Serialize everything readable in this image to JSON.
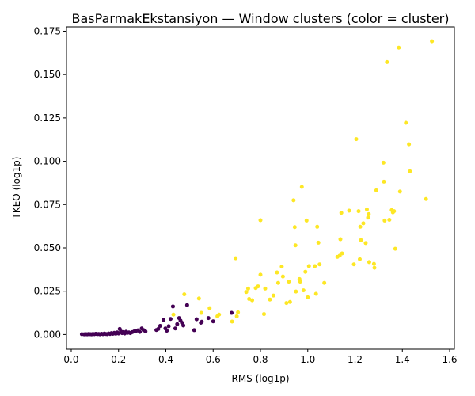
{
  "chart_data": {
    "type": "scatter",
    "title": "BasParmakEkstansiyon — Window clusters (color = cluster)",
    "xlabel": "RMS (log1p)",
    "ylabel": "TKEO (log1p)",
    "xlim": [
      -0.02,
      1.62
    ],
    "ylim": [
      -0.0085,
      0.1775
    ],
    "x_ticks": [
      0.0,
      0.2,
      0.4,
      0.6,
      0.8,
      1.0,
      1.2,
      1.4,
      1.6
    ],
    "x_tick_labels": [
      "0.0",
      "0.2",
      "0.4",
      "0.6",
      "0.8",
      "1.0",
      "1.2",
      "1.4",
      "1.6"
    ],
    "y_ticks": [
      0.0,
      0.025,
      0.05,
      0.075,
      0.1,
      0.125,
      0.15,
      0.175
    ],
    "y_tick_labels": [
      "0.000",
      "0.025",
      "0.050",
      "0.075",
      "0.100",
      "0.125",
      "0.150",
      "0.175"
    ],
    "grid": false,
    "legend": "none",
    "series": [
      {
        "name": "cluster 0",
        "color": "#440154",
        "points": [
          [
            0.045,
            0.0002
          ],
          [
            0.055,
            0.0001
          ],
          [
            0.062,
            0.0002
          ],
          [
            0.068,
            0.0001
          ],
          [
            0.074,
            0.0003
          ],
          [
            0.08,
            0.0002
          ],
          [
            0.086,
            0.0001
          ],
          [
            0.092,
            0.0003
          ],
          [
            0.098,
            0.0002
          ],
          [
            0.104,
            0.0004
          ],
          [
            0.11,
            0.0002
          ],
          [
            0.116,
            0.0003
          ],
          [
            0.122,
            0.0001
          ],
          [
            0.128,
            0.0004
          ],
          [
            0.134,
            0.0002
          ],
          [
            0.14,
            0.0005
          ],
          [
            0.146,
            0.0003
          ],
          [
            0.152,
            0.0002
          ],
          [
            0.158,
            0.0006
          ],
          [
            0.164,
            0.0003
          ],
          [
            0.17,
            0.0008
          ],
          [
            0.176,
            0.0004
          ],
          [
            0.182,
            0.001
          ],
          [
            0.188,
            0.0005
          ],
          [
            0.194,
            0.0012
          ],
          [
            0.2,
            0.0006
          ],
          [
            0.205,
            0.0032
          ],
          [
            0.21,
            0.0018
          ],
          [
            0.215,
            0.0008
          ],
          [
            0.22,
            0.0014
          ],
          [
            0.226,
            0.0006
          ],
          [
            0.232,
            0.0016
          ],
          [
            0.238,
            0.001
          ],
          [
            0.244,
            0.0012
          ],
          [
            0.25,
            0.0008
          ],
          [
            0.258,
            0.0014
          ],
          [
            0.266,
            0.0018
          ],
          [
            0.274,
            0.002
          ],
          [
            0.282,
            0.0024
          ],
          [
            0.29,
            0.0015
          ],
          [
            0.298,
            0.0035
          ],
          [
            0.306,
            0.0025
          ],
          [
            0.314,
            0.0018
          ],
          [
            0.36,
            0.0026
          ],
          [
            0.368,
            0.0032
          ],
          [
            0.376,
            0.005
          ],
          [
            0.39,
            0.0085
          ],
          [
            0.398,
            0.0035
          ],
          [
            0.404,
            0.0022
          ],
          [
            0.412,
            0.0048
          ],
          [
            0.42,
            0.009
          ],
          [
            0.43,
            0.0162
          ],
          [
            0.44,
            0.0035
          ],
          [
            0.448,
            0.006
          ],
          [
            0.456,
            0.0095
          ],
          [
            0.462,
            0.008
          ],
          [
            0.468,
            0.0068
          ],
          [
            0.474,
            0.0052
          ],
          [
            0.49,
            0.017
          ],
          [
            0.52,
            0.0025
          ],
          [
            0.53,
            0.0088
          ],
          [
            0.548,
            0.0068
          ],
          [
            0.552,
            0.0074
          ],
          [
            0.58,
            0.0095
          ],
          [
            0.6,
            0.0076
          ],
          [
            0.678,
            0.0125
          ]
        ]
      },
      {
        "name": "cluster 1",
        "color": "#fde725",
        "points": [
          [
            0.432,
            0.0115
          ],
          [
            0.478,
            0.0232
          ],
          [
            0.54,
            0.0208
          ],
          [
            0.55,
            0.0125
          ],
          [
            0.585,
            0.0152
          ],
          [
            0.618,
            0.0105
          ],
          [
            0.625,
            0.0115
          ],
          [
            0.68,
            0.0075
          ],
          [
            0.695,
            0.044
          ],
          [
            0.7,
            0.0105
          ],
          [
            0.705,
            0.0128
          ],
          [
            0.74,
            0.0245
          ],
          [
            0.748,
            0.0265
          ],
          [
            0.752,
            0.0205
          ],
          [
            0.765,
            0.0198
          ],
          [
            0.78,
            0.0268
          ],
          [
            0.79,
            0.0278
          ],
          [
            0.8,
            0.0345
          ],
          [
            0.8,
            0.066
          ],
          [
            0.815,
            0.0118
          ],
          [
            0.82,
            0.0265
          ],
          [
            0.84,
            0.0202
          ],
          [
            0.855,
            0.0225
          ],
          [
            0.87,
            0.0358
          ],
          [
            0.875,
            0.0298
          ],
          [
            0.89,
            0.0392
          ],
          [
            0.895,
            0.0335
          ],
          [
            0.91,
            0.0182
          ],
          [
            0.92,
            0.0305
          ],
          [
            0.925,
            0.0188
          ],
          [
            0.94,
            0.0775
          ],
          [
            0.945,
            0.062
          ],
          [
            0.948,
            0.0515
          ],
          [
            0.95,
            0.0248
          ],
          [
            0.965,
            0.032
          ],
          [
            0.968,
            0.0305
          ],
          [
            0.975,
            0.0852
          ],
          [
            0.982,
            0.0255
          ],
          [
            0.99,
            0.0362
          ],
          [
            0.995,
            0.0658
          ],
          [
            1.0,
            0.0215
          ],
          [
            1.005,
            0.0395
          ],
          [
            1.03,
            0.0395
          ],
          [
            1.035,
            0.0235
          ],
          [
            1.04,
            0.0622
          ],
          [
            1.045,
            0.053
          ],
          [
            1.05,
            0.0405
          ],
          [
            1.07,
            0.0298
          ],
          [
            1.125,
            0.0448
          ],
          [
            1.135,
            0.0455
          ],
          [
            1.138,
            0.055
          ],
          [
            1.142,
            0.0702
          ],
          [
            1.145,
            0.0468
          ],
          [
            1.175,
            0.0715
          ],
          [
            1.195,
            0.0405
          ],
          [
            1.205,
            0.1128
          ],
          [
            1.215,
            0.0712
          ],
          [
            1.22,
            0.0435
          ],
          [
            1.222,
            0.0622
          ],
          [
            1.225,
            0.0545
          ],
          [
            1.235,
            0.0642
          ],
          [
            1.245,
            0.0528
          ],
          [
            1.25,
            0.0722
          ],
          [
            1.255,
            0.0675
          ],
          [
            1.258,
            0.0695
          ],
          [
            1.26,
            0.0418
          ],
          [
            1.28,
            0.0408
          ],
          [
            1.282,
            0.0385
          ],
          [
            1.29,
            0.0832
          ],
          [
            1.32,
            0.0992
          ],
          [
            1.322,
            0.0882
          ],
          [
            1.325,
            0.0658
          ],
          [
            1.335,
            0.1572
          ],
          [
            1.345,
            0.0662
          ],
          [
            1.355,
            0.0718
          ],
          [
            1.36,
            0.0705
          ],
          [
            1.365,
            0.0712
          ],
          [
            1.37,
            0.0495
          ],
          [
            1.385,
            0.1655
          ],
          [
            1.39,
            0.0825
          ],
          [
            1.415,
            0.1222
          ],
          [
            1.428,
            0.1098
          ],
          [
            1.432,
            0.0942
          ],
          [
            1.5,
            0.0782
          ],
          [
            1.525,
            0.1692
          ]
        ]
      }
    ]
  }
}
